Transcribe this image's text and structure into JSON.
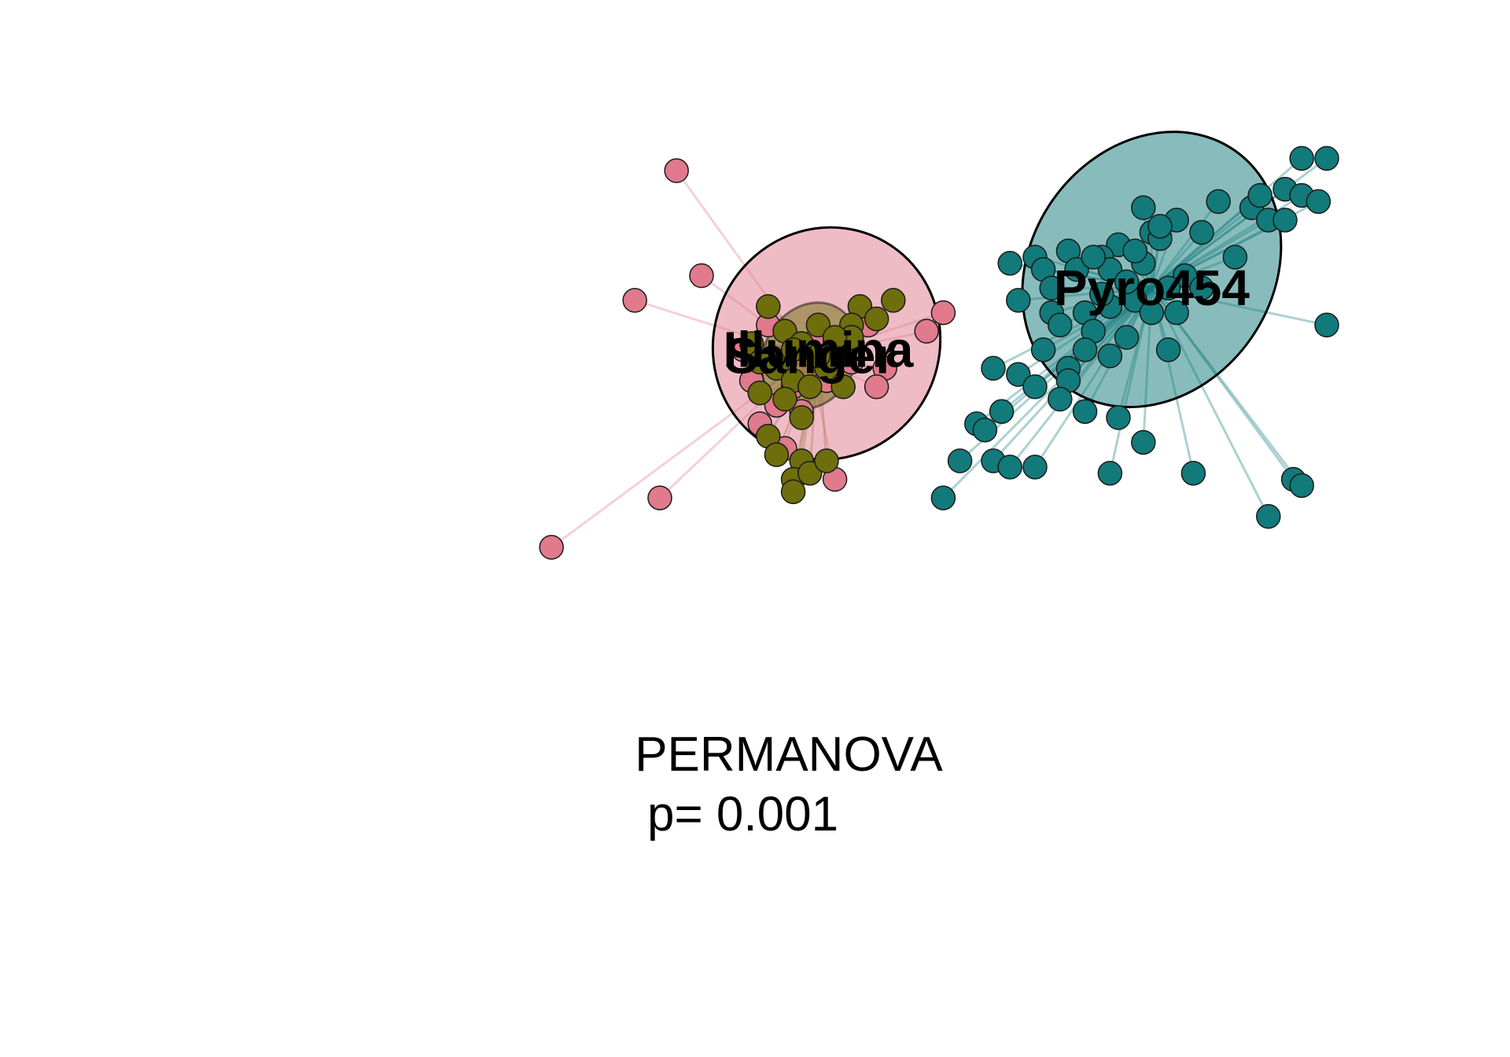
{
  "chart_data": {
    "type": "scatter",
    "kind": "ordination with group spiders and confidence ellipses",
    "axes_visible": false,
    "grid": false,
    "legend": "none",
    "xlim": [
      0,
      1
    ],
    "ylim": [
      0,
      1
    ],
    "annotation": {
      "line1": "PERMANOVA",
      "line2": "p= 0.001"
    },
    "groups": [
      {
        "name": "Sanger",
        "color": "#E07A8C",
        "centroid": [
          0.33,
          0.57
        ],
        "ellipse": {
          "center": [
            0.35,
            0.59
          ],
          "rx": 0.135,
          "ry": 0.19,
          "angle": 30
        },
        "points": [
          [
            0.17,
            0.87
          ],
          [
            0.12,
            0.66
          ],
          [
            0.2,
            0.7
          ],
          [
            0.49,
            0.64
          ],
          [
            0.47,
            0.61
          ],
          [
            0.42,
            0.55
          ],
          [
            0.02,
            0.26
          ],
          [
            0.15,
            0.34
          ],
          [
            0.36,
            0.37
          ],
          [
            0.27,
            0.46
          ],
          [
            0.41,
            0.52
          ],
          [
            0.3,
            0.42
          ],
          [
            0.31,
            0.52
          ],
          [
            0.35,
            0.53
          ],
          [
            0.25,
            0.58
          ],
          [
            0.28,
            0.62
          ],
          [
            0.34,
            0.6
          ],
          [
            0.3,
            0.56
          ],
          [
            0.37,
            0.58
          ],
          [
            0.4,
            0.62
          ],
          [
            0.26,
            0.53
          ],
          [
            0.32,
            0.48
          ],
          [
            0.29,
            0.49
          ],
          [
            0.38,
            0.56
          ]
        ]
      },
      {
        "name": "Illumina",
        "color": "#6E6E0C",
        "centroid": [
          0.34,
          0.58
        ],
        "ellipse": {
          "center": [
            0.33,
            0.57
          ],
          "rx": 0.055,
          "ry": 0.09,
          "angle": 30
        },
        "points": [
          [
            0.28,
            0.65
          ],
          [
            0.39,
            0.65
          ],
          [
            0.43,
            0.66
          ],
          [
            0.41,
            0.63
          ],
          [
            0.38,
            0.62
          ],
          [
            0.34,
            0.62
          ],
          [
            0.3,
            0.61
          ],
          [
            0.32,
            0.59
          ],
          [
            0.36,
            0.59
          ],
          [
            0.38,
            0.6
          ],
          [
            0.26,
            0.59
          ],
          [
            0.27,
            0.56
          ],
          [
            0.29,
            0.55
          ],
          [
            0.31,
            0.53
          ],
          [
            0.33,
            0.52
          ],
          [
            0.35,
            0.55
          ],
          [
            0.37,
            0.52
          ],
          [
            0.3,
            0.5
          ],
          [
            0.27,
            0.51
          ],
          [
            0.32,
            0.47
          ],
          [
            0.28,
            0.44
          ],
          [
            0.29,
            0.41
          ],
          [
            0.32,
            0.4
          ],
          [
            0.31,
            0.37
          ],
          [
            0.33,
            0.38
          ],
          [
            0.31,
            0.35
          ],
          [
            0.35,
            0.4
          ],
          [
            0.36,
            0.6
          ],
          [
            0.34,
            0.57
          ],
          [
            0.31,
            0.58
          ]
        ]
      },
      {
        "name": "Pyro454",
        "color": "#127A7A",
        "centroid": [
          0.74,
          0.68
        ],
        "ellipse": {
          "center": [
            0.74,
            0.71
          ],
          "rx": 0.145,
          "ry": 0.235,
          "angle": 35
        },
        "points": [
          [
            0.92,
            0.89
          ],
          [
            0.95,
            0.89
          ],
          [
            0.9,
            0.84
          ],
          [
            0.92,
            0.83
          ],
          [
            0.94,
            0.82
          ],
          [
            0.86,
            0.81
          ],
          [
            0.88,
            0.79
          ],
          [
            0.9,
            0.79
          ],
          [
            0.87,
            0.83
          ],
          [
            0.82,
            0.82
          ],
          [
            0.8,
            0.77
          ],
          [
            0.84,
            0.73
          ],
          [
            0.77,
            0.79
          ],
          [
            0.74,
            0.77
          ],
          [
            0.7,
            0.75
          ],
          [
            0.68,
            0.73
          ],
          [
            0.64,
            0.74
          ],
          [
            0.6,
            0.73
          ],
          [
            0.57,
            0.72
          ],
          [
            0.61,
            0.71
          ],
          [
            0.65,
            0.71
          ],
          [
            0.69,
            0.71
          ],
          [
            0.73,
            0.72
          ],
          [
            0.78,
            0.7
          ],
          [
            0.76,
            0.68
          ],
          [
            0.72,
            0.66
          ],
          [
            0.69,
            0.65
          ],
          [
            0.66,
            0.64
          ],
          [
            0.62,
            0.64
          ],
          [
            0.58,
            0.66
          ],
          [
            0.63,
            0.62
          ],
          [
            0.67,
            0.61
          ],
          [
            0.71,
            0.6
          ],
          [
            0.77,
            0.64
          ],
          [
            0.95,
            0.62
          ],
          [
            0.66,
            0.58
          ],
          [
            0.61,
            0.58
          ],
          [
            0.64,
            0.55
          ],
          [
            0.69,
            0.57
          ],
          [
            0.55,
            0.55
          ],
          [
            0.58,
            0.54
          ],
          [
            0.64,
            0.53
          ],
          [
            0.6,
            0.52
          ],
          [
            0.63,
            0.5
          ],
          [
            0.66,
            0.48
          ],
          [
            0.7,
            0.47
          ],
          [
            0.56,
            0.48
          ],
          [
            0.53,
            0.46
          ],
          [
            0.54,
            0.45
          ],
          [
            0.73,
            0.43
          ],
          [
            0.76,
            0.58
          ],
          [
            0.51,
            0.4
          ],
          [
            0.55,
            0.4
          ],
          [
            0.57,
            0.39
          ],
          [
            0.6,
            0.39
          ],
          [
            0.69,
            0.38
          ],
          [
            0.79,
            0.38
          ],
          [
            0.91,
            0.37
          ],
          [
            0.92,
            0.36
          ],
          [
            0.49,
            0.34
          ],
          [
            0.88,
            0.31
          ],
          [
            0.67,
            0.73
          ],
          [
            0.72,
            0.74
          ],
          [
            0.75,
            0.76
          ],
          [
            0.71,
            0.69
          ],
          [
            0.74,
            0.64
          ],
          [
            0.62,
            0.68
          ],
          [
            0.68,
            0.67
          ],
          [
            0.8,
            0.68
          ],
          [
            0.73,
            0.81
          ],
          [
            0.75,
            0.78
          ]
        ]
      }
    ]
  }
}
